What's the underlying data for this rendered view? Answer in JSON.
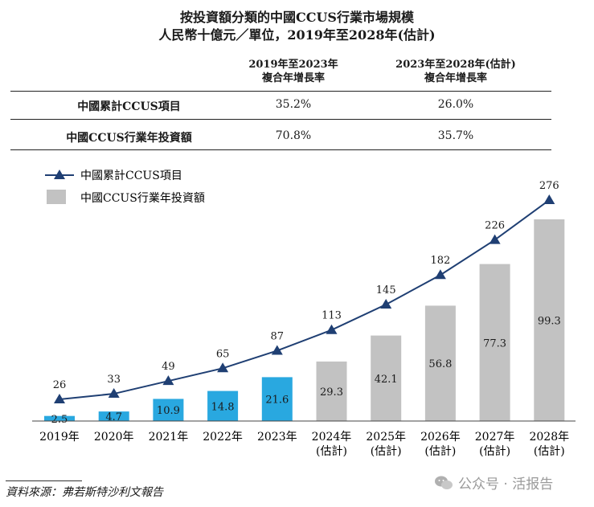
{
  "title_line1": "按投資額分類的中國CCUS行業市場規模",
  "title_line2": "人民幣十億元／單位，2019年至2028年(估計)",
  "table": {
    "col1_line1": "2019年至2023年",
    "col1_line2": "複合年增長率",
    "col2_line1": "2023年至2028年(估計)",
    "col2_line2": "複合年增長率",
    "rows": [
      {
        "label": "中國累計CCUS項目",
        "cagr1": "35.2%",
        "cagr2": "26.0%"
      },
      {
        "label": "中國CCUS行業年投資額",
        "cagr1": "70.8%",
        "cagr2": "35.7%"
      }
    ]
  },
  "legend": {
    "line_label": "中國累計CCUS項目",
    "bar_label": "中國CCUS行業年投資額"
  },
  "colors": {
    "actual_bar": "#29a8e0",
    "estimate_bar": "#c2c2c2",
    "line": "#1f3f73"
  },
  "chart_data": {
    "type": "bar",
    "title": "按投資額分類的中國CCUS行業市場規模",
    "categories": [
      {
        "year": "2019年",
        "sub": ""
      },
      {
        "year": "2020年",
        "sub": ""
      },
      {
        "year": "2021年",
        "sub": ""
      },
      {
        "year": "2022年",
        "sub": ""
      },
      {
        "year": "2023年",
        "sub": ""
      },
      {
        "year": "2024年",
        "sub": "(估計)"
      },
      {
        "year": "2025年",
        "sub": "(估計)"
      },
      {
        "year": "2026年",
        "sub": "(估計)"
      },
      {
        "year": "2027年",
        "sub": "(估計)"
      },
      {
        "year": "2028年",
        "sub": "(估計)"
      }
    ],
    "series": [
      {
        "name": "中國CCUS行業年投資額",
        "kind": "bar",
        "unit": "人民幣十億元",
        "values": [
          2.5,
          4.7,
          10.9,
          14.8,
          21.6,
          29.3,
          42.1,
          56.8,
          77.3,
          99.3
        ],
        "estimated": [
          false,
          false,
          false,
          false,
          false,
          true,
          true,
          true,
          true,
          true
        ]
      },
      {
        "name": "中國累計CCUS項目",
        "kind": "line",
        "values": [
          26,
          33,
          49,
          65,
          87,
          113,
          145,
          182,
          226,
          276
        ]
      }
    ],
    "xlabel": "",
    "ylabel": ""
  },
  "source": "資料來源：弗若斯特沙利文報告",
  "watermark": "公众号 · 活报告"
}
